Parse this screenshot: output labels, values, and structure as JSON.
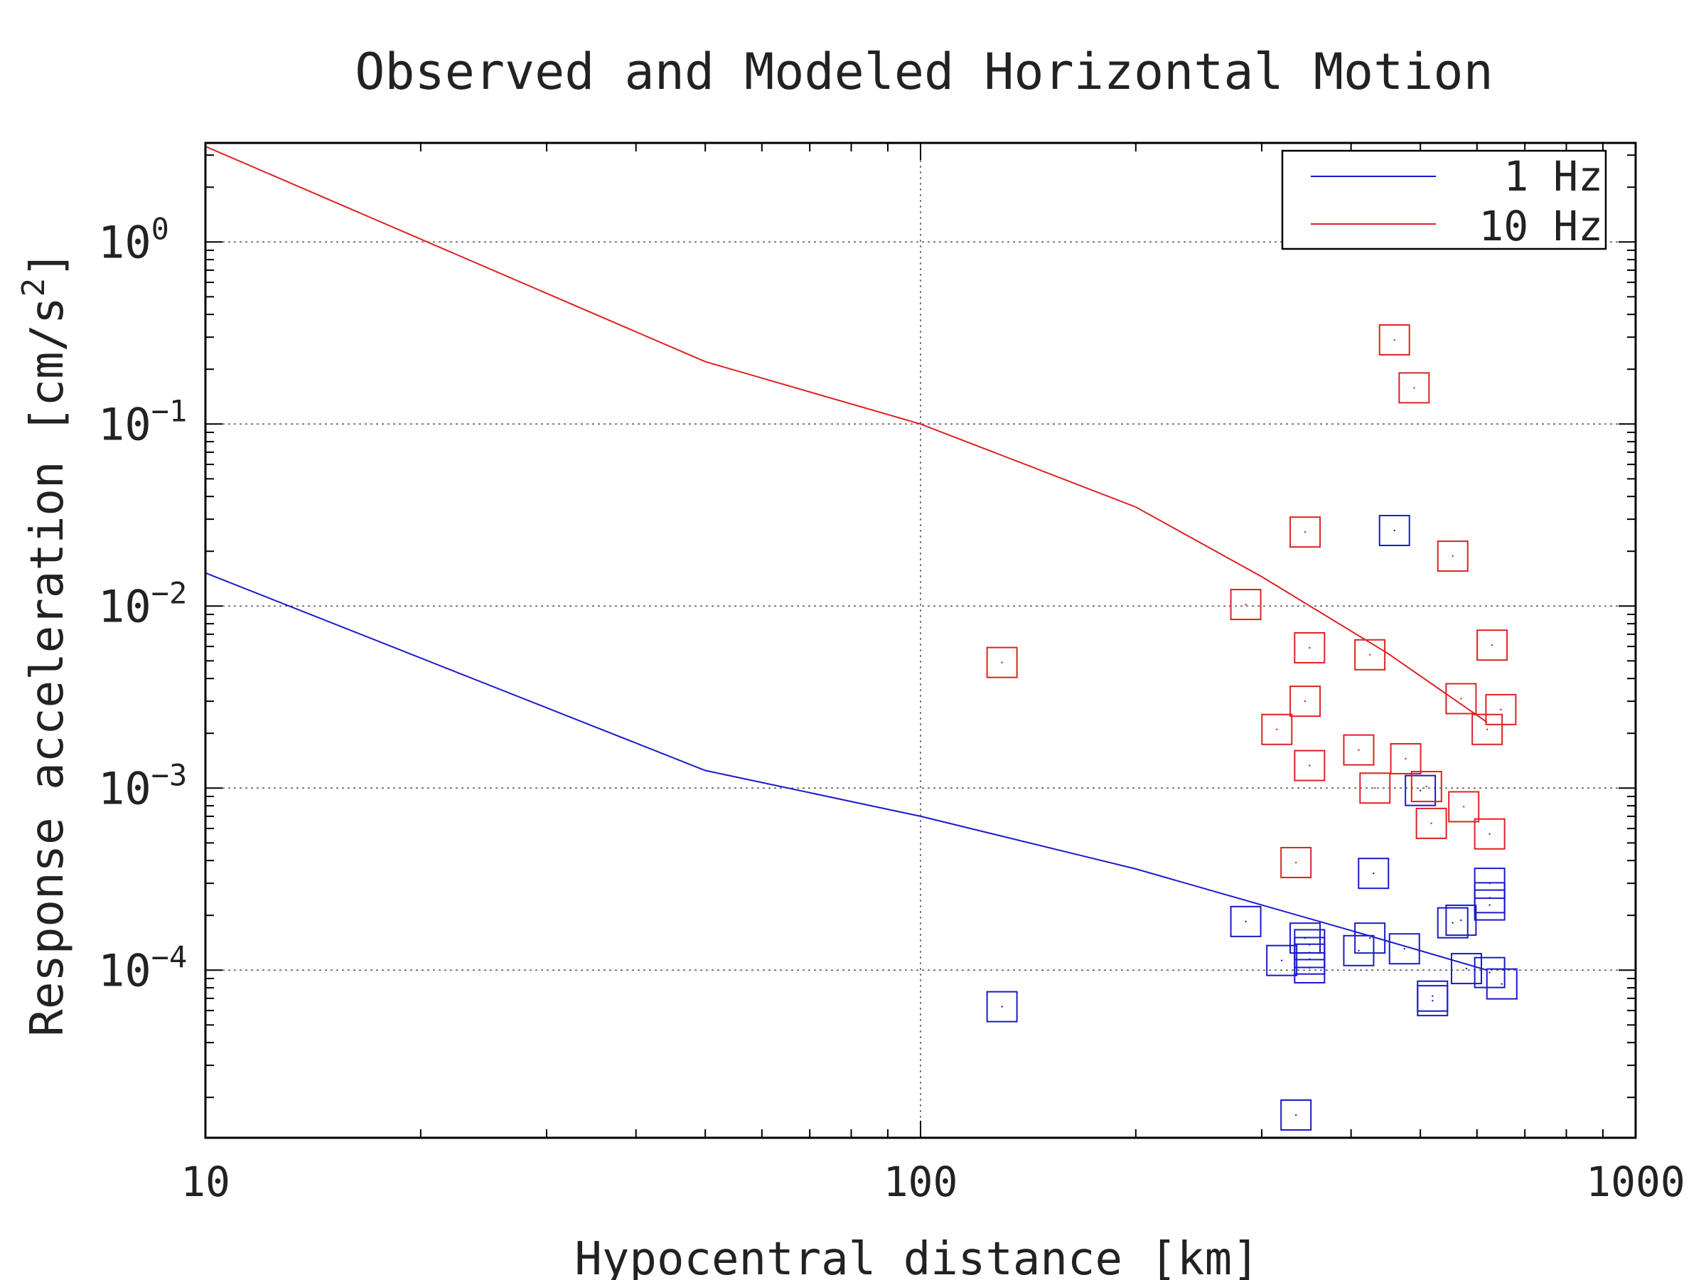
{
  "chart_data": {
    "type": "line",
    "title": "Observed and Modeled Horizontal Motion",
    "xlabel": "Hypocentral distance [km]",
    "ylabel": "Response acceleration [cm/s",
    "ylabel_sup": "2",
    "ylabel_end": "]",
    "xscale": "log",
    "yscale": "log",
    "xlim": [
      10,
      1000
    ],
    "ylim": [
      1.2e-05,
      3.5
    ],
    "grid": true,
    "legend_position": "top-right",
    "x_ticks": [
      {
        "value": 10,
        "label": "10"
      },
      {
        "value": 100,
        "label": "100"
      },
      {
        "value": 1000,
        "label": "1000"
      }
    ],
    "y_ticks": [
      {
        "value": 1,
        "base": "10",
        "exp": "0"
      },
      {
        "value": 0.1,
        "base": "10",
        "exp": "−1"
      },
      {
        "value": 0.01,
        "base": "10",
        "exp": "−2"
      },
      {
        "value": 0.001,
        "base": "10",
        "exp": "−3"
      },
      {
        "value": 0.0001,
        "base": "10",
        "exp": "−4"
      }
    ],
    "series": [
      {
        "name": "1 Hz",
        "color": "#1a1acc",
        "line": [
          [
            10,
            0.0152
          ],
          [
            50,
            0.00125
          ],
          [
            100,
            0.0007
          ],
          [
            200,
            0.00036
          ],
          [
            400,
            0.000165
          ],
          [
            620,
            0.0001
          ]
        ],
        "points": [
          [
            130,
            6.3e-05
          ],
          [
            285,
            0.000185
          ],
          [
            320,
            0.000113
          ],
          [
            335,
            1.6e-05
          ],
          [
            345,
            0.00015
          ],
          [
            350,
            0.000138
          ],
          [
            350,
            0.000125
          ],
          [
            350,
            0.000115
          ],
          [
            350,
            0.000103
          ],
          [
            410,
            0.000128
          ],
          [
            425,
            0.00015
          ],
          [
            430,
            0.00034
          ],
          [
            460,
            0.026
          ],
          [
            475,
            0.000131
          ],
          [
            500,
            0.00097
          ],
          [
            520,
            6.8e-05
          ],
          [
            520,
            7.2e-05
          ],
          [
            555,
            0.000182
          ],
          [
            570,
            0.000188
          ],
          [
            580,
            0.000102
          ],
          [
            625,
            0.0003
          ],
          [
            625,
            0.00025
          ],
          [
            625,
            0.000228
          ],
          [
            625,
            9.7e-05
          ],
          [
            650,
            8.4e-05
          ]
        ]
      },
      {
        "name": "10 Hz",
        "color": "#dd2222",
        "line": [
          [
            10,
            3.35
          ],
          [
            50,
            0.22
          ],
          [
            100,
            0.1
          ],
          [
            200,
            0.035
          ],
          [
            300,
            0.0145
          ],
          [
            450,
            0.0055
          ],
          [
            620,
            0.0023
          ]
        ],
        "points": [
          [
            130,
            0.0049
          ],
          [
            285,
            0.0102
          ],
          [
            315,
            0.0021
          ],
          [
            335,
            0.00039
          ],
          [
            345,
            0.0255
          ],
          [
            345,
            0.003
          ],
          [
            350,
            0.0059
          ],
          [
            350,
            0.00133
          ],
          [
            410,
            0.00162
          ],
          [
            425,
            0.0054
          ],
          [
            432,
            0.001
          ],
          [
            460,
            0.29
          ],
          [
            477,
            0.00145
          ],
          [
            490,
            0.158
          ],
          [
            510,
            0.00102
          ],
          [
            518,
            0.00064
          ],
          [
            555,
            0.0188
          ],
          [
            570,
            0.0031
          ],
          [
            575,
            0.00079
          ],
          [
            620,
            0.0021
          ],
          [
            625,
            0.00056
          ],
          [
            630,
            0.0061
          ],
          [
            648,
            0.0027
          ]
        ]
      }
    ]
  }
}
